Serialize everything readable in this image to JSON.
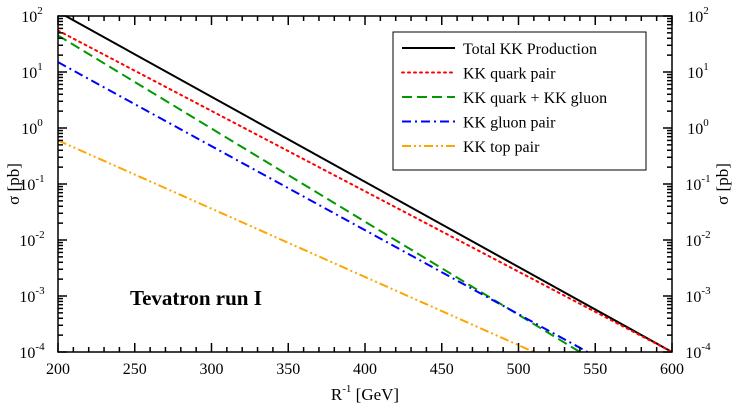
{
  "chart_data": {
    "type": "line",
    "xlabel": "R",
    "xlabel_sup": "-1",
    "xlabel_unit": "[GeV]",
    "ylabel": "σ [pb]",
    "xlim": [
      200,
      600
    ],
    "ylim": [
      0.0001,
      100
    ],
    "yscale": "log",
    "grid": false,
    "legend_position": "top-right",
    "annotation": "Tevatron run I",
    "x_ticks": [
      200,
      250,
      300,
      350,
      400,
      450,
      500,
      550,
      600
    ],
    "y_ticks": [
      {
        "base": "10",
        "exp": "-4",
        "value": 0.0001
      },
      {
        "base": "10",
        "exp": "-3",
        "value": 0.001
      },
      {
        "base": "10",
        "exp": "-2",
        "value": 0.01
      },
      {
        "base": "10",
        "exp": "-1",
        "value": 0.1
      },
      {
        "base": "10",
        "exp": "0",
        "value": 1
      },
      {
        "base": "10",
        "exp": "1",
        "value": 10
      },
      {
        "base": "10",
        "exp": "2",
        "value": 100
      }
    ],
    "series": [
      {
        "name": "Total KK Production",
        "color": "#000000",
        "dash": "solid",
        "x": [
          205,
          600
        ],
        "y": [
          100,
          0.0001
        ]
      },
      {
        "name": "KK quark pair",
        "color": "#ff0000",
        "dash": "dotted",
        "x": [
          200,
          600
        ],
        "y": [
          55,
          0.0001
        ]
      },
      {
        "name": "KK quark + KK gluon",
        "color": "#009900",
        "dash": "dashed",
        "x": [
          200,
          540
        ],
        "y": [
          45,
          0.0001
        ]
      },
      {
        "name": "KK gluon pair",
        "color": "#0000ff",
        "dash": "dashdot",
        "x": [
          200,
          545
        ],
        "y": [
          15,
          0.0001
        ]
      },
      {
        "name": "KK top pair",
        "color": "#ffa500",
        "dash": "dashdotdot",
        "x": [
          200,
          510
        ],
        "y": [
          0.6,
          0.0001
        ]
      }
    ]
  }
}
